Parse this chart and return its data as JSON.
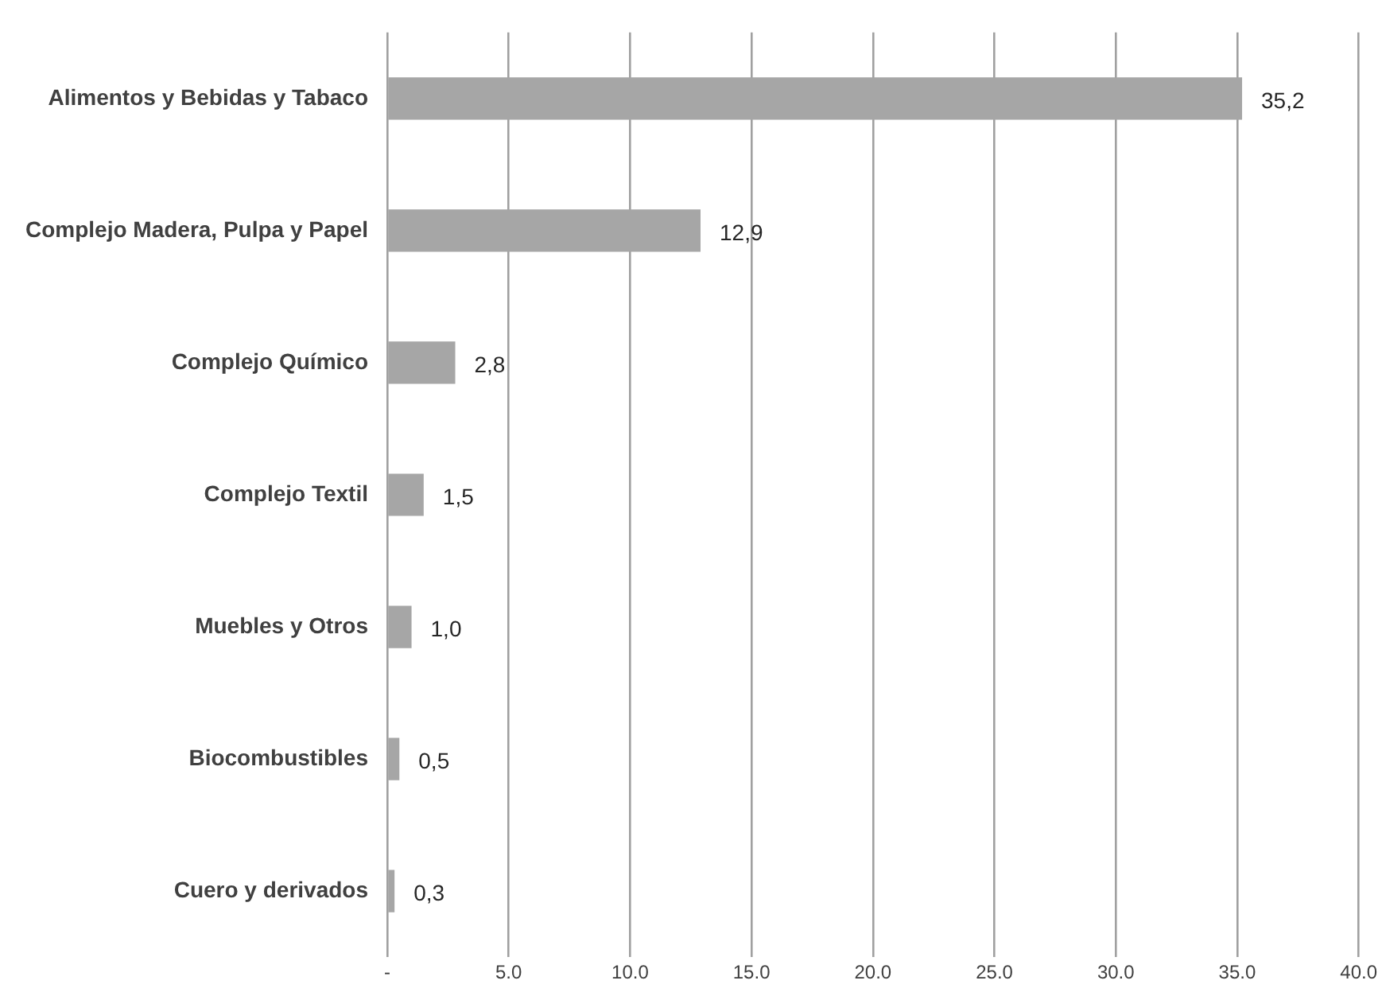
{
  "chart_data": {
    "type": "bar",
    "orientation": "horizontal",
    "categories": [
      "Alimentos y Bebidas y Tabaco",
      "Complejo Madera, Pulpa y Papel",
      "Complejo Químico",
      "Complejo Textil",
      "Muebles y Otros",
      "Biocombustibles",
      "Cuero y derivados"
    ],
    "values": [
      35.2,
      12.9,
      2.8,
      1.5,
      1.0,
      0.5,
      0.3
    ],
    "value_labels": [
      "35,2",
      "12,9",
      "2,8",
      "1,5",
      "1,0",
      "0,5",
      "0,3"
    ],
    "color": "#a6a6a6",
    "xlim": [
      0,
      40
    ],
    "xticks": [
      {
        "value": 0,
        "label": "-"
      },
      {
        "value": 5,
        "label": "5.0"
      },
      {
        "value": 10,
        "label": "10.0"
      },
      {
        "value": 15,
        "label": "15.0"
      },
      {
        "value": 20,
        "label": "20.0"
      },
      {
        "value": 25,
        "label": "25.0"
      },
      {
        "value": 30,
        "label": "30.0"
      },
      {
        "value": 35,
        "label": "35.0"
      },
      {
        "value": 40,
        "label": "40.0"
      }
    ],
    "grid": "x",
    "legend": false
  }
}
